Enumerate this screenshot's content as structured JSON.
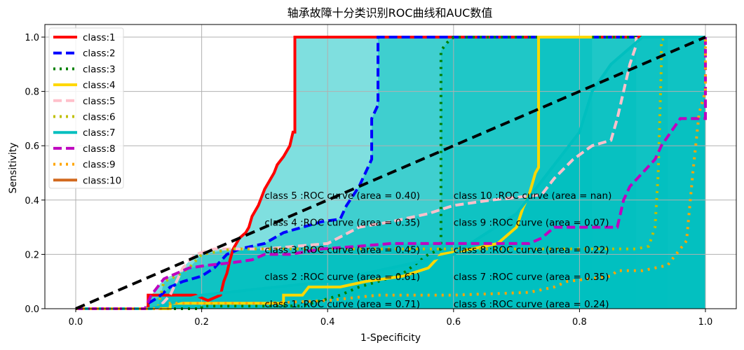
{
  "chart_data": {
    "type": "line",
    "title": "轴承故障十分类识别ROC曲线和AUC数值",
    "xlabel": "1-Specificity",
    "ylabel": "Sensitivity",
    "xlim": [
      -0.07,
      1.05
    ],
    "ylim": [
      0.0,
      1.05
    ],
    "xticks": [
      "0.0",
      "0.2",
      "0.4",
      "0.6",
      "0.8",
      "1.0"
    ],
    "yticks": [
      "0.0",
      "0.2",
      "0.4",
      "0.6",
      "0.8",
      "1.0"
    ],
    "grid": true,
    "legend_position": "upper left",
    "fill_under_curves": true,
    "fill_color": "#00bfbf",
    "diagonal": {
      "style": "dashed",
      "color": "#000000",
      "points": [
        [
          0,
          0
        ],
        [
          1,
          1
        ]
      ]
    },
    "series": [
      {
        "name": "class:1",
        "color": "#ff0000",
        "style": "solid",
        "points": [
          [
            0,
            0
          ],
          [
            0.115,
            0
          ],
          [
            0.115,
            0.05
          ],
          [
            0.19,
            0.05
          ],
          [
            0.21,
            0.03
          ],
          [
            0.23,
            0.05
          ],
          [
            0.235,
            0.1
          ],
          [
            0.24,
            0.13
          ],
          [
            0.245,
            0.18
          ],
          [
            0.25,
            0.22
          ],
          [
            0.26,
            0.26
          ],
          [
            0.27,
            0.28
          ],
          [
            0.275,
            0.3
          ],
          [
            0.28,
            0.34
          ],
          [
            0.29,
            0.38
          ],
          [
            0.3,
            0.44
          ],
          [
            0.31,
            0.48
          ],
          [
            0.315,
            0.5
          ],
          [
            0.32,
            0.53
          ],
          [
            0.33,
            0.56
          ],
          [
            0.34,
            0.6
          ],
          [
            0.345,
            0.65
          ],
          [
            0.348,
            0.65
          ],
          [
            0.348,
            1.0
          ],
          [
            0.48,
            1.0
          ],
          [
            1.0,
            1.0
          ]
        ]
      },
      {
        "name": "class:2",
        "color": "#0000ff",
        "style": "dashed",
        "points": [
          [
            0,
            0
          ],
          [
            0.11,
            0
          ],
          [
            0.115,
            0.02
          ],
          [
            0.13,
            0.04
          ],
          [
            0.15,
            0.08
          ],
          [
            0.17,
            0.1
          ],
          [
            0.2,
            0.12
          ],
          [
            0.22,
            0.15
          ],
          [
            0.24,
            0.2
          ],
          [
            0.26,
            0.22
          ],
          [
            0.3,
            0.24
          ],
          [
            0.33,
            0.28
          ],
          [
            0.36,
            0.3
          ],
          [
            0.39,
            0.32
          ],
          [
            0.42,
            0.33
          ],
          [
            0.43,
            0.38
          ],
          [
            0.45,
            0.45
          ],
          [
            0.47,
            0.55
          ],
          [
            0.47,
            0.7
          ],
          [
            0.48,
            0.75
          ],
          [
            0.48,
            1.0
          ],
          [
            1.0,
            1.0
          ]
        ]
      },
      {
        "name": "class:3",
        "color": "#008000",
        "style": "dotted",
        "points": [
          [
            0,
            0
          ],
          [
            0.2,
            0
          ],
          [
            0.2,
            0.01
          ],
          [
            0.36,
            0.01
          ],
          [
            0.39,
            0.03
          ],
          [
            0.42,
            0.05
          ],
          [
            0.45,
            0.08
          ],
          [
            0.48,
            0.1
          ],
          [
            0.52,
            0.13
          ],
          [
            0.56,
            0.2
          ],
          [
            0.58,
            0.22
          ],
          [
            0.58,
            0.95
          ],
          [
            0.59,
            0.98
          ],
          [
            0.6,
            1.0
          ],
          [
            1.0,
            1.0
          ]
        ]
      },
      {
        "name": "class:4",
        "color": "#ffd700",
        "style": "solid",
        "points": [
          [
            0,
            0
          ],
          [
            0.15,
            0
          ],
          [
            0.15,
            0.02
          ],
          [
            0.33,
            0.02
          ],
          [
            0.33,
            0.05
          ],
          [
            0.36,
            0.05
          ],
          [
            0.37,
            0.08
          ],
          [
            0.42,
            0.08
          ],
          [
            0.46,
            0.1
          ],
          [
            0.52,
            0.12
          ],
          [
            0.56,
            0.15
          ],
          [
            0.58,
            0.2
          ],
          [
            0.63,
            0.22
          ],
          [
            0.67,
            0.24
          ],
          [
            0.7,
            0.3
          ],
          [
            0.71,
            0.37
          ],
          [
            0.72,
            0.42
          ],
          [
            0.73,
            0.5
          ],
          [
            0.735,
            0.52
          ],
          [
            0.735,
            1.0
          ],
          [
            0.82,
            1.0
          ]
        ]
      },
      {
        "name": "class:5",
        "color": "#ffc0cb",
        "style": "dashed",
        "points": [
          [
            0,
            0
          ],
          [
            0.13,
            0
          ],
          [
            0.15,
            0.05
          ],
          [
            0.16,
            0.1
          ],
          [
            0.17,
            0.15
          ],
          [
            0.19,
            0.2
          ],
          [
            0.22,
            0.22
          ],
          [
            0.3,
            0.22
          ],
          [
            0.4,
            0.24
          ],
          [
            0.45,
            0.3
          ],
          [
            0.5,
            0.32
          ],
          [
            0.56,
            0.35
          ],
          [
            0.6,
            0.38
          ],
          [
            0.66,
            0.4
          ],
          [
            0.74,
            0.42
          ],
          [
            0.76,
            0.48
          ],
          [
            0.79,
            0.55
          ],
          [
            0.82,
            0.6
          ],
          [
            0.85,
            0.62
          ],
          [
            0.86,
            0.7
          ],
          [
            0.87,
            0.8
          ],
          [
            0.88,
            0.9
          ],
          [
            0.89,
            0.97
          ],
          [
            0.89,
            1.0
          ]
        ]
      },
      {
        "name": "class:6",
        "color": "#bfbf00",
        "style": "dotted",
        "points": [
          [
            0,
            0
          ],
          [
            0.13,
            0
          ],
          [
            0.14,
            0.1
          ],
          [
            0.16,
            0.12
          ],
          [
            0.18,
            0.15
          ],
          [
            0.2,
            0.2
          ],
          [
            0.25,
            0.22
          ],
          [
            0.6,
            0.22
          ],
          [
            0.89,
            0.22
          ],
          [
            0.91,
            0.23
          ],
          [
            0.92,
            0.3
          ],
          [
            0.925,
            0.5
          ],
          [
            0.93,
            0.9
          ],
          [
            0.93,
            0.99
          ],
          [
            0.94,
            1.0
          ]
        ]
      },
      {
        "name": "class:7",
        "color": "#00bfbf",
        "style": "solid",
        "points": [
          [
            0,
            0
          ],
          [
            0.12,
            0
          ],
          [
            0.2,
            0.05
          ],
          [
            0.4,
            0.1
          ],
          [
            0.6,
            0.2
          ],
          [
            0.7,
            0.35
          ],
          [
            0.75,
            0.5
          ],
          [
            0.8,
            0.65
          ],
          [
            0.82,
            0.8
          ],
          [
            0.85,
            0.9
          ],
          [
            0.9,
            1.0
          ],
          [
            1.0,
            1.0
          ]
        ]
      },
      {
        "name": "class:8",
        "color": "#bf00bf",
        "style": "dashed",
        "points": [
          [
            0,
            0
          ],
          [
            0.11,
            0
          ],
          [
            0.12,
            0.05
          ],
          [
            0.13,
            0.08
          ],
          [
            0.14,
            0.11
          ],
          [
            0.16,
            0.13
          ],
          [
            0.18,
            0.15
          ],
          [
            0.21,
            0.16
          ],
          [
            0.25,
            0.17
          ],
          [
            0.28,
            0.18
          ],
          [
            0.3,
            0.2
          ],
          [
            0.34,
            0.2
          ],
          [
            0.39,
            0.22
          ],
          [
            0.45,
            0.23
          ],
          [
            0.5,
            0.24
          ],
          [
            0.6,
            0.24
          ],
          [
            0.72,
            0.24
          ],
          [
            0.74,
            0.26
          ],
          [
            0.76,
            0.3
          ],
          [
            0.86,
            0.3
          ],
          [
            0.87,
            0.4
          ],
          [
            0.88,
            0.45
          ],
          [
            0.9,
            0.5
          ],
          [
            0.92,
            0.55
          ],
          [
            0.93,
            0.6
          ],
          [
            0.96,
            0.7
          ],
          [
            1.0,
            0.7
          ],
          [
            1.0,
            1.0
          ]
        ]
      },
      {
        "name": "class:9",
        "color": "#ffa500",
        "style": "dotted",
        "points": [
          [
            0,
            0
          ],
          [
            0.15,
            0
          ],
          [
            0.15,
            0.02
          ],
          [
            0.3,
            0.02
          ],
          [
            0.4,
            0.03
          ],
          [
            0.48,
            0.05
          ],
          [
            0.6,
            0.05
          ],
          [
            0.72,
            0.06
          ],
          [
            0.76,
            0.08
          ],
          [
            0.78,
            0.1
          ],
          [
            0.85,
            0.12
          ],
          [
            0.86,
            0.14
          ],
          [
            0.9,
            0.14
          ],
          [
            0.94,
            0.16
          ],
          [
            0.97,
            0.25
          ],
          [
            0.98,
            0.5
          ],
          [
            0.99,
            0.72
          ],
          [
            1.0,
            0.8
          ],
          [
            1.0,
            1.0
          ]
        ]
      },
      {
        "name": "class:10",
        "color": "#d2691e",
        "style": "solid",
        "points": []
      }
    ],
    "annotations": [
      {
        "text": "class 5 :ROC curve (area = 0.40)",
        "x": 0.3,
        "y": 0.4
      },
      {
        "text": "class 4 :ROC curve (area = 0.35)",
        "x": 0.3,
        "y": 0.3
      },
      {
        "text": "class 3 :ROC curve (area = 0.45)",
        "x": 0.3,
        "y": 0.2
      },
      {
        "text": "class 2 :ROC curve (area = 0.61)",
        "x": 0.3,
        "y": 0.1
      },
      {
        "text": "class 1 :ROC curve (area = 0.71)",
        "x": 0.3,
        "y": 0.0
      },
      {
        "text": "class 10 :ROC curve (area = nan)",
        "x": 0.6,
        "y": 0.4
      },
      {
        "text": "class 9 :ROC curve (area = 0.07)",
        "x": 0.6,
        "y": 0.3
      },
      {
        "text": "class 8 :ROC curve (area = 0.22)",
        "x": 0.6,
        "y": 0.2
      },
      {
        "text": "class 7 :ROC curve (area = 0.35)",
        "x": 0.6,
        "y": 0.1
      },
      {
        "text": "class 6 :ROC curve (area = 0.24)",
        "x": 0.6,
        "y": 0.0
      }
    ],
    "auc": {
      "class 1": 0.71,
      "class 2": 0.61,
      "class 3": 0.45,
      "class 4": 0.35,
      "class 5": 0.4,
      "class 6": 0.24,
      "class 7": 0.35,
      "class 8": 0.22,
      "class 9": 0.07,
      "class 10": "nan"
    }
  }
}
